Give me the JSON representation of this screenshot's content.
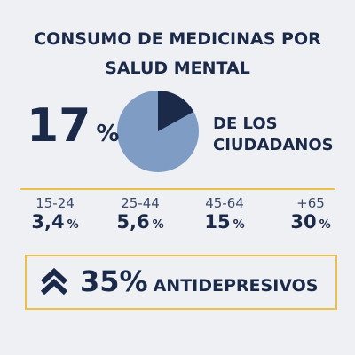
{
  "title": "CONSUMO DE MEDICINAS POR SALUD MENTAL",
  "headline": {
    "value": 17,
    "unit": "%",
    "label": "DE LOS CIUDADANOS"
  },
  "groups": [
    {
      "age": "15-24",
      "value": "3,4",
      "unit": "%"
    },
    {
      "age": "25-44",
      "value": "5,6",
      "unit": "%"
    },
    {
      "age": "45-64",
      "value": "15",
      "unit": "%"
    },
    {
      "age": "+65",
      "value": "30",
      "unit": "%"
    }
  ],
  "banner": {
    "value": "35",
    "unit": "%",
    "label": "ANTIDEPRESIVOS"
  }
}
